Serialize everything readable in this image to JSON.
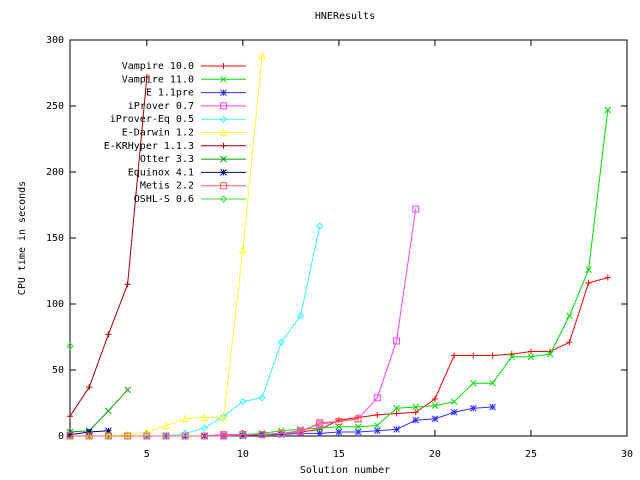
{
  "chart_data": {
    "type": "line",
    "title": "HNEResults",
    "x_label": "Solution number",
    "y_label": "CPU time in seconds",
    "xlim": [
      1,
      30
    ],
    "ylim": [
      0,
      300
    ],
    "xticks": [
      5,
      10,
      15,
      20,
      25,
      30
    ],
    "yticks": [
      0,
      50,
      100,
      150,
      200,
      250,
      300
    ],
    "legend": "top-left",
    "series": [
      {
        "name": "Vampire 10.0",
        "color": "#ff0000",
        "x": [
          1,
          2,
          3,
          4,
          5,
          6,
          7,
          8,
          9,
          10,
          11,
          12,
          13,
          14,
          15,
          16,
          17,
          18,
          19,
          20,
          21,
          22,
          23,
          24,
          25,
          26,
          27,
          28,
          29
        ],
        "values": [
          0,
          0,
          0,
          0,
          0,
          0,
          0,
          0,
          0.5,
          1,
          1,
          2,
          3,
          5,
          12,
          14,
          16,
          17,
          18,
          28,
          61,
          61,
          61,
          62,
          64,
          64,
          71,
          116,
          120
        ]
      },
      {
        "name": "Vampire 11.0",
        "color": "#00e000",
        "x": [
          1,
          2,
          3,
          4,
          5,
          6,
          7,
          8,
          9,
          10,
          11,
          12,
          13,
          14,
          15,
          16,
          17,
          18,
          19,
          20,
          21,
          22,
          23,
          24,
          25,
          26,
          27,
          28,
          29
        ],
        "values": [
          0,
          0,
          0,
          0,
          0,
          0,
          0,
          0,
          1,
          1,
          2,
          4,
          5,
          6,
          7,
          7,
          8,
          21,
          22,
          23,
          26,
          40,
          40,
          60,
          60,
          62,
          91,
          126,
          247
        ]
      },
      {
        "name": "E 1.1pre",
        "color": "#3030ff",
        "x": [
          5,
          6,
          7,
          8,
          9,
          10,
          11,
          12,
          13,
          14,
          15,
          16,
          17,
          18,
          19,
          20,
          21,
          22,
          23
        ],
        "values": [
          0,
          0,
          0,
          0,
          0,
          0,
          1,
          1,
          2,
          2,
          3,
          3,
          4,
          5,
          12,
          13,
          18,
          21,
          22
        ]
      },
      {
        "name": "iProver 0.7",
        "color": "#ff40ff",
        "x": [
          8,
          9,
          10,
          11,
          12,
          13,
          14,
          15,
          16,
          17,
          18,
          19
        ],
        "values": [
          0,
          0,
          1,
          1,
          2,
          4,
          9,
          11,
          13,
          29,
          72,
          172
        ]
      },
      {
        "name": "iProver-Eq 0.5",
        "color": "#40f0ff",
        "x": [
          5,
          6,
          7,
          8,
          9,
          10,
          11,
          12,
          13,
          14
        ],
        "values": [
          0,
          0,
          2,
          6,
          15,
          26,
          29,
          71,
          91,
          159
        ]
      },
      {
        "name": "E-Darwin 1.2",
        "color": "#ffff30",
        "x": [
          1,
          2,
          3,
          4,
          5,
          6,
          7,
          8,
          9,
          10,
          11
        ],
        "values": [
          0,
          0,
          0,
          1,
          3,
          8,
          13,
          14,
          14,
          141,
          288
        ]
      },
      {
        "name": "E-KRHyper 1.1.3",
        "color": "#a00000",
        "x": [
          1,
          2,
          3,
          4,
          5
        ],
        "values": [
          15,
          37,
          77,
          115,
          272
        ]
      },
      {
        "name": "Otter 3.3",
        "color": "#00a000",
        "x": [
          1,
          2,
          3,
          4
        ],
        "values": [
          3,
          4,
          19,
          35
        ]
      },
      {
        "name": "Equinox 4.1",
        "color": "#000080",
        "x": [
          1,
          2,
          3
        ],
        "values": [
          1,
          3,
          4
        ]
      },
      {
        "name": "Metis 2.2",
        "color": "#ff6060",
        "x": [
          1,
          2,
          3,
          4,
          5,
          6,
          7,
          8,
          9,
          10,
          11,
          12,
          13,
          14,
          15,
          16
        ],
        "values": [
          0,
          0,
          0,
          0,
          0,
          0,
          0,
          0,
          1,
          1,
          1,
          2,
          3,
          10,
          11,
          13
        ]
      },
      {
        "name": "OSHL-S 0.6",
        "color": "#40e040",
        "x": [
          1
        ],
        "values": [
          68
        ]
      }
    ]
  }
}
